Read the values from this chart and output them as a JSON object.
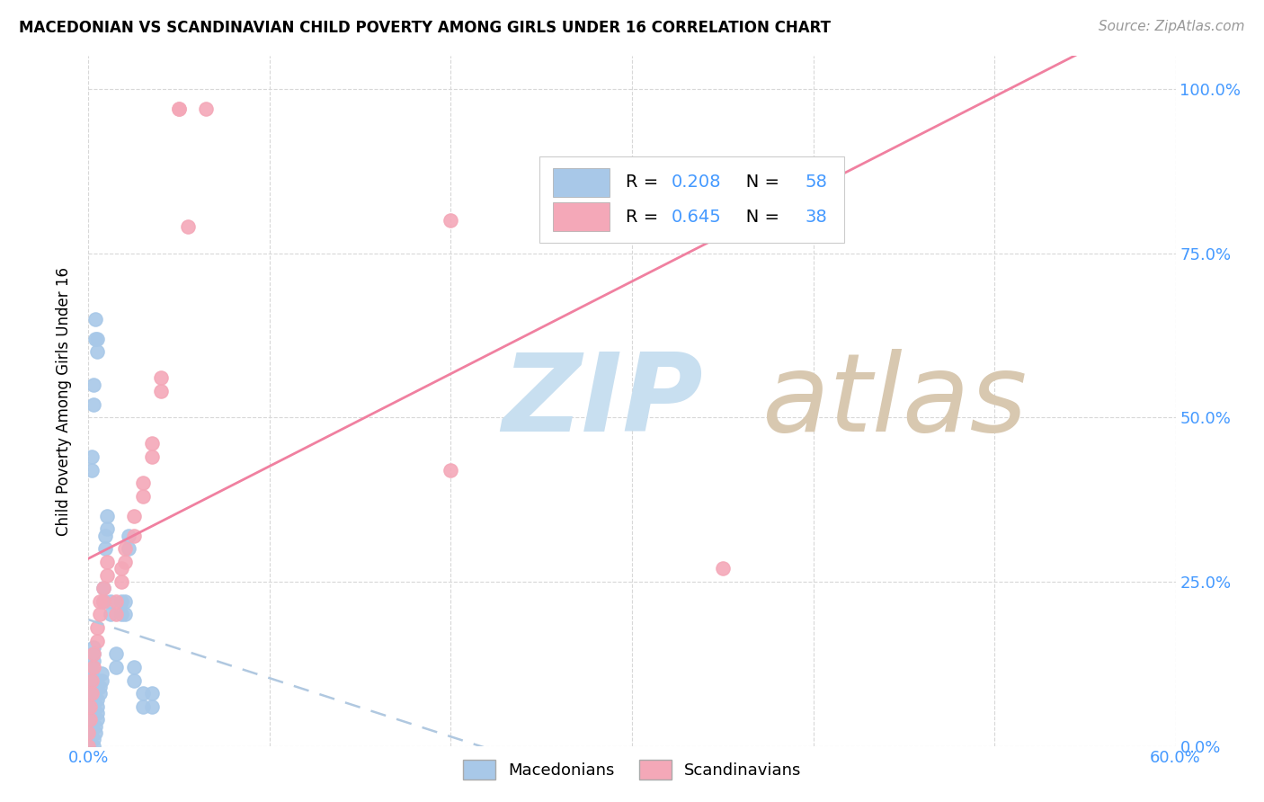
{
  "title": "MACEDONIAN VS SCANDINAVIAN CHILD POVERTY AMONG GIRLS UNDER 16 CORRELATION CHART",
  "source": "Source: ZipAtlas.com",
  "ylabel": "Child Poverty Among Girls Under 16",
  "xlim": [
    0.0,
    0.6
  ],
  "ylim": [
    0.0,
    1.05
  ],
  "macedonian_color": "#a8c8e8",
  "macedonian_edge_color": "#88aacc",
  "scandinavian_color": "#f4a8b8",
  "scandinavian_edge_color": "#d88898",
  "macedonian_line_color": "#aabbdd",
  "scandinavian_line_color": "#f080a0",
  "macedonian_R": 0.208,
  "macedonian_N": 58,
  "scandinavian_R": 0.645,
  "scandinavian_N": 38,
  "blue_color": "#4499ff",
  "watermark_zip_color": "#c8dff0",
  "watermark_atlas_color": "#d8c8b0",
  "x_tick_vals": [
    0.0,
    0.1,
    0.2,
    0.3,
    0.4,
    0.5,
    0.6
  ],
  "x_tick_labels_show": [
    "0.0%",
    "",
    "",
    "",
    "",
    "",
    "60.0%"
  ],
  "y_tick_vals": [
    0.0,
    0.25,
    0.5,
    0.75,
    1.0
  ],
  "y_tick_labels": [
    "0.0%",
    "25.0%",
    "50.0%",
    "75.0%",
    "100.0%"
  ],
  "macedonian_points": [
    [
      0.0,
      0.0
    ],
    [
      0.0,
      0.01
    ],
    [
      0.001,
      0.02
    ],
    [
      0.001,
      0.03
    ],
    [
      0.001,
      0.04
    ],
    [
      0.001,
      0.05
    ],
    [
      0.001,
      0.06
    ],
    [
      0.002,
      0.07
    ],
    [
      0.002,
      0.08
    ],
    [
      0.002,
      0.09
    ],
    [
      0.002,
      0.1
    ],
    [
      0.002,
      0.11
    ],
    [
      0.002,
      0.12
    ],
    [
      0.003,
      0.13
    ],
    [
      0.003,
      0.14
    ],
    [
      0.003,
      0.15
    ],
    [
      0.003,
      0.0
    ],
    [
      0.003,
      0.01
    ],
    [
      0.004,
      0.02
    ],
    [
      0.004,
      0.03
    ],
    [
      0.005,
      0.04
    ],
    [
      0.005,
      0.05
    ],
    [
      0.005,
      0.06
    ],
    [
      0.005,
      0.07
    ],
    [
      0.006,
      0.08
    ],
    [
      0.006,
      0.09
    ],
    [
      0.007,
      0.1
    ],
    [
      0.007,
      0.11
    ],
    [
      0.008,
      0.22
    ],
    [
      0.008,
      0.24
    ],
    [
      0.009,
      0.3
    ],
    [
      0.009,
      0.32
    ],
    [
      0.01,
      0.33
    ],
    [
      0.01,
      0.35
    ],
    [
      0.012,
      0.2
    ],
    [
      0.012,
      0.22
    ],
    [
      0.015,
      0.12
    ],
    [
      0.015,
      0.14
    ],
    [
      0.018,
      0.2
    ],
    [
      0.018,
      0.22
    ],
    [
      0.02,
      0.2
    ],
    [
      0.02,
      0.22
    ],
    [
      0.022,
      0.3
    ],
    [
      0.022,
      0.32
    ],
    [
      0.025,
      0.1
    ],
    [
      0.025,
      0.12
    ],
    [
      0.03,
      0.06
    ],
    [
      0.03,
      0.08
    ],
    [
      0.035,
      0.06
    ],
    [
      0.035,
      0.08
    ],
    [
      0.002,
      0.42
    ],
    [
      0.002,
      0.44
    ],
    [
      0.003,
      0.52
    ],
    [
      0.003,
      0.55
    ],
    [
      0.004,
      0.62
    ],
    [
      0.004,
      0.65
    ],
    [
      0.005,
      0.6
    ],
    [
      0.005,
      0.62
    ]
  ],
  "scandinavian_points": [
    [
      0.0,
      0.0
    ],
    [
      0.0,
      0.02
    ],
    [
      0.001,
      0.04
    ],
    [
      0.001,
      0.06
    ],
    [
      0.002,
      0.08
    ],
    [
      0.002,
      0.1
    ],
    [
      0.003,
      0.12
    ],
    [
      0.003,
      0.14
    ],
    [
      0.005,
      0.16
    ],
    [
      0.005,
      0.18
    ],
    [
      0.006,
      0.2
    ],
    [
      0.006,
      0.22
    ],
    [
      0.008,
      0.22
    ],
    [
      0.008,
      0.24
    ],
    [
      0.01,
      0.26
    ],
    [
      0.01,
      0.28
    ],
    [
      0.015,
      0.2
    ],
    [
      0.015,
      0.22
    ],
    [
      0.018,
      0.25
    ],
    [
      0.018,
      0.27
    ],
    [
      0.02,
      0.28
    ],
    [
      0.02,
      0.3
    ],
    [
      0.025,
      0.32
    ],
    [
      0.025,
      0.35
    ],
    [
      0.03,
      0.38
    ],
    [
      0.03,
      0.4
    ],
    [
      0.035,
      0.44
    ],
    [
      0.035,
      0.46
    ],
    [
      0.04,
      0.54
    ],
    [
      0.04,
      0.56
    ],
    [
      0.05,
      0.97
    ],
    [
      0.05,
      0.97
    ],
    [
      0.055,
      0.79
    ],
    [
      0.065,
      0.97
    ],
    [
      0.38,
      0.87
    ],
    [
      0.35,
      0.27
    ],
    [
      0.2,
      0.8
    ],
    [
      0.2,
      0.42
    ]
  ]
}
